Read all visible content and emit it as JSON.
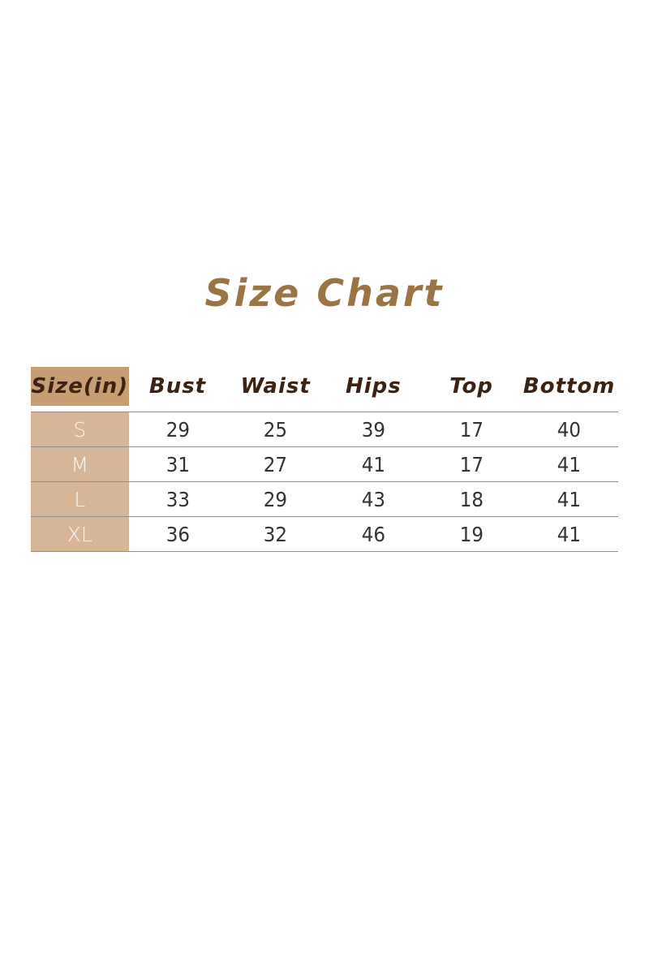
{
  "title": {
    "text": "Size Chart",
    "color": "#9b7446"
  },
  "colors": {
    "header_cell_bg": "#c79d73",
    "body_size_col_bg": "#d6b697",
    "rule_line": "#8f8d87",
    "header_text": "#3b2213",
    "number_text": "#333333",
    "size_label_text": "#faf6f1"
  },
  "chart_data": {
    "type": "table",
    "title": "Size Chart",
    "unit": "inches",
    "headers": [
      "Size(in)",
      "Bust",
      "Waist",
      "Hips",
      "Top",
      "Bottom"
    ],
    "rows": [
      {
        "size": "S",
        "values": [
          "29",
          "25",
          "39",
          "17",
          "40"
        ]
      },
      {
        "size": "M",
        "values": [
          "31",
          "27",
          "41",
          "17",
          "41"
        ]
      },
      {
        "size": "L",
        "values": [
          "33",
          "29",
          "43",
          "18",
          "41"
        ]
      },
      {
        "size": "XL",
        "values": [
          "36",
          "32",
          "46",
          "19",
          "41"
        ]
      }
    ]
  }
}
